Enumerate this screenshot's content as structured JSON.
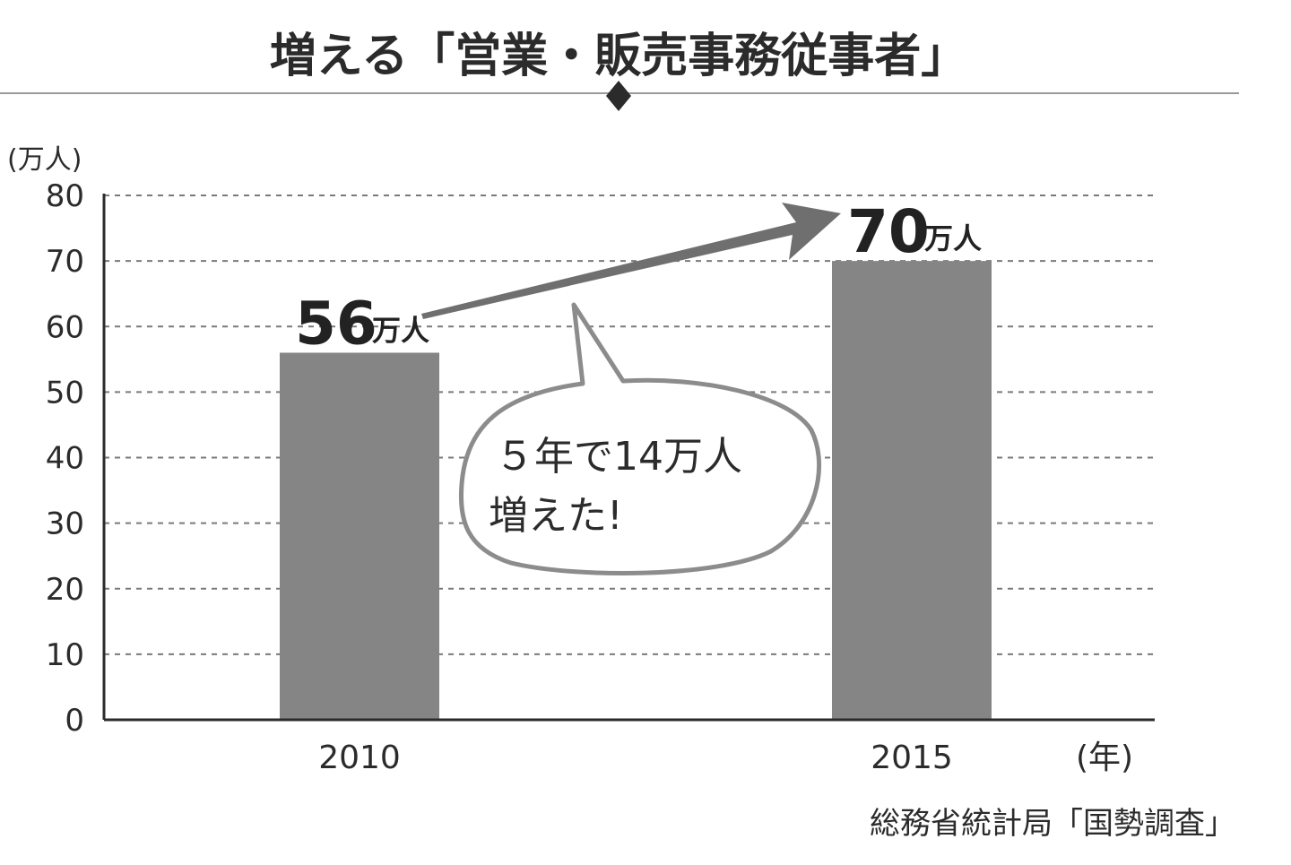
{
  "chart_data": {
    "type": "bar",
    "title": "増える「営業・販売事務従事者」",
    "ylabel": "(万人)",
    "xlabel": "(年)",
    "categories": [
      "2010",
      "2015"
    ],
    "values": [
      56,
      70
    ],
    "ylim": [
      0,
      80
    ],
    "yticks": [
      "0",
      "10",
      "20",
      "30",
      "40",
      "50",
      "60",
      "70",
      "80"
    ],
    "grid": true,
    "bar_color": "#858585",
    "value_labels": [
      {
        "number": "56",
        "unit": "万人"
      },
      {
        "number": "70",
        "unit": "万人"
      }
    ],
    "annotation": {
      "line1": "５年で14万人",
      "line2": "増えた!"
    },
    "source": "総務省統計局「国勢調査」"
  }
}
